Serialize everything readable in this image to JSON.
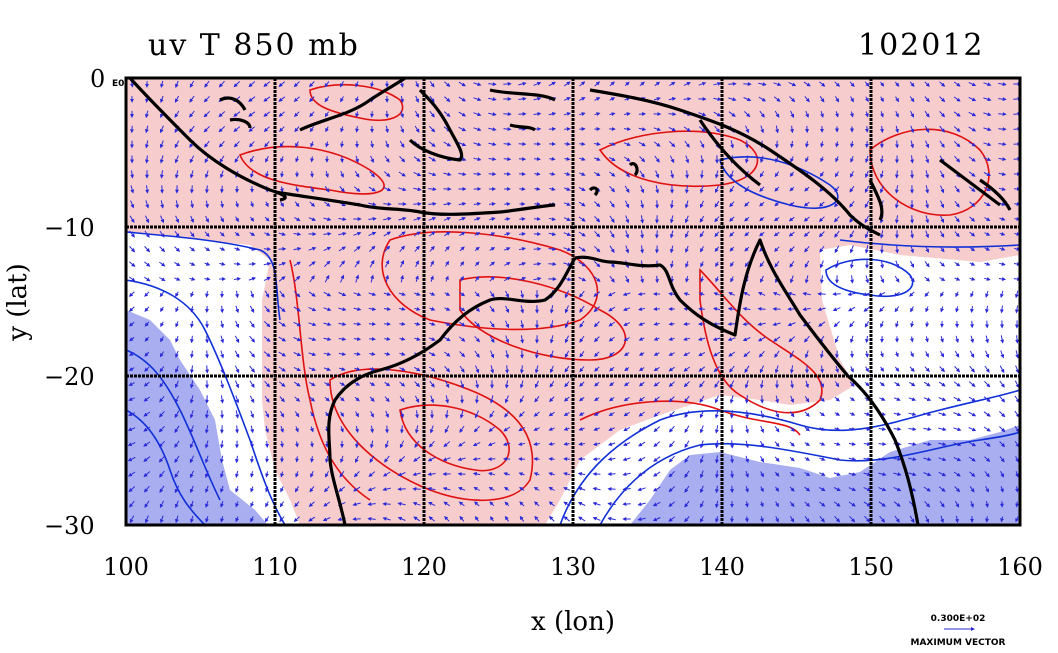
{
  "header": {
    "title": "uv T 850 mb",
    "date": "102012"
  },
  "axes": {
    "xlabel": "x (lon)",
    "ylabel": "y (lat)",
    "x_ticks": [
      "100",
      "110",
      "120",
      "130",
      "140",
      "150",
      "160"
    ],
    "y_ticks": [
      "0",
      "−10",
      "−20",
      "−30"
    ],
    "corner_tag": "E0"
  },
  "legend": {
    "vector_value": "0.300E+02",
    "vector_caption": "MAXIMUM VECTOR"
  },
  "map": {
    "projection": "lat-lon",
    "lon_range": [
      100,
      160
    ],
    "lat_range": [
      -30,
      0
    ],
    "grid": true,
    "grid_spacing_deg": 10,
    "colors": {
      "warm_fill": "#f6cccc",
      "cold_fill": "#a8aef0",
      "warm_contour": "#e01010",
      "cold_contour": "#1030d8",
      "vectors": "#2a2ad8",
      "coastline": "#000000"
    }
  }
}
